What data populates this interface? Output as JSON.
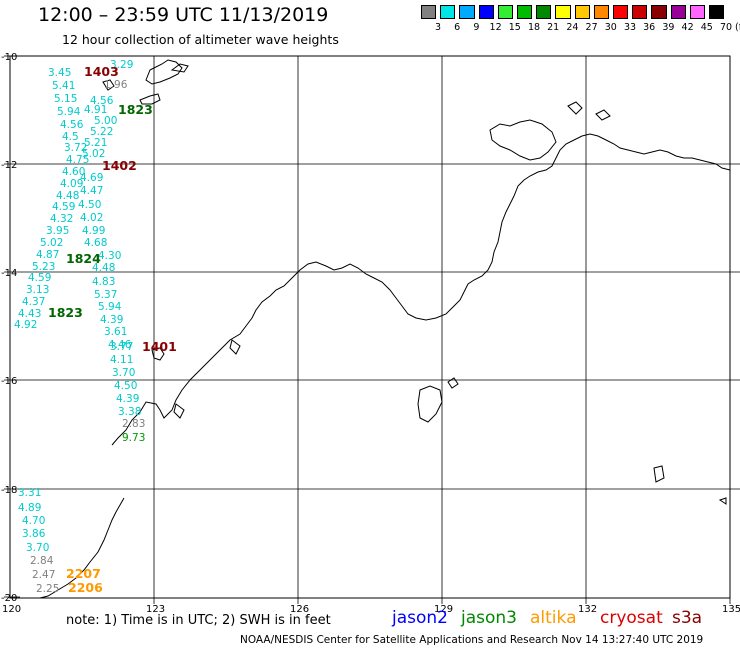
{
  "header": {
    "title": "12:00 – 23:59 UTC 11/13/2019",
    "subtitle": "12 hour collection of altimeter wave heights"
  },
  "legend": {
    "unit": "(ft)",
    "bins": [
      {
        "label": "3",
        "color": "#808080"
      },
      {
        "label": "6",
        "color": "#00e5e5"
      },
      {
        "label": "9",
        "color": "#00aaff"
      },
      {
        "label": "12",
        "color": "#0000ff"
      },
      {
        "label": "15",
        "color": "#33ee33"
      },
      {
        "label": "18",
        "color": "#00bb00"
      },
      {
        "label": "21",
        "color": "#008800"
      },
      {
        "label": "24",
        "color": "#ffff00"
      },
      {
        "label": "27",
        "color": "#ffc800"
      },
      {
        "label": "30",
        "color": "#ff8800"
      },
      {
        "label": "33",
        "color": "#ff0000"
      },
      {
        "label": "36",
        "color": "#cc0000"
      },
      {
        "label": "39",
        "color": "#880000"
      },
      {
        "label": "42",
        "color": "#990099"
      },
      {
        "label": "45",
        "color": "#ff66ff"
      },
      {
        "label": "70",
        "color": "#000000"
      }
    ]
  },
  "axes": {
    "lat_labels": [
      "-10",
      "-12",
      "-14",
      "-16",
      "-18",
      "-20"
    ],
    "lon_labels": [
      "120",
      "123",
      "126",
      "129",
      "132",
      "135"
    ]
  },
  "observations": [
    {
      "text": "3.45",
      "color": "#00cccc"
    },
    {
      "text": "5.41",
      "color": "#00cccc"
    },
    {
      "text": "5.15",
      "color": "#00cccc"
    },
    {
      "text": "5.94",
      "color": "#00cccc"
    },
    {
      "text": "4.56",
      "color": "#00cccc"
    },
    {
      "text": "4.5",
      "color": "#00cccc"
    },
    {
      "text": "3.72",
      "color": "#00cccc"
    },
    {
      "text": "4.75",
      "color": "#00cccc"
    },
    {
      "text": "4.60",
      "color": "#00cccc"
    },
    {
      "text": "4.09",
      "color": "#00cccc"
    },
    {
      "text": "4.48",
      "color": "#00cccc"
    },
    {
      "text": "4.59",
      "color": "#00cccc"
    },
    {
      "text": "4.32",
      "color": "#00cccc"
    },
    {
      "text": "3.95",
      "color": "#00cccc"
    },
    {
      "text": "5.02",
      "color": "#00cccc"
    },
    {
      "text": "4.87",
      "color": "#00cccc"
    },
    {
      "text": "5.23",
      "color": "#00cccc"
    },
    {
      "text": "4.59",
      "color": "#00cccc"
    },
    {
      "text": "3.13",
      "color": "#00cccc"
    },
    {
      "text": "4.37",
      "color": "#00cccc"
    },
    {
      "text": "4.43",
      "color": "#00cccc"
    },
    {
      "text": "4.92",
      "color": "#00cccc"
    },
    {
      "text": "3.29",
      "color": "#00cccc"
    },
    {
      "text": "1.96",
      "color": "#808080"
    },
    {
      "text": "4.56",
      "color": "#00cccc"
    },
    {
      "text": "4.91",
      "color": "#00cccc"
    },
    {
      "text": "5.00",
      "color": "#00cccc"
    },
    {
      "text": "5.22",
      "color": "#00cccc"
    },
    {
      "text": "5.21",
      "color": "#00cccc"
    },
    {
      "text": "5.02",
      "color": "#00cccc"
    },
    {
      "text": "4.69",
      "color": "#00cccc"
    },
    {
      "text": "4.47",
      "color": "#00cccc"
    },
    {
      "text": "4.50",
      "color": "#00cccc"
    },
    {
      "text": "4.02",
      "color": "#00cccc"
    },
    {
      "text": "4.99",
      "color": "#00cccc"
    },
    {
      "text": "4.68",
      "color": "#00cccc"
    },
    {
      "text": "4.30",
      "color": "#00cccc"
    },
    {
      "text": "4.48",
      "color": "#00cccc"
    },
    {
      "text": "4.83",
      "color": "#00cccc"
    },
    {
      "text": "5.37",
      "color": "#00cccc"
    },
    {
      "text": "5.94",
      "color": "#00cccc"
    },
    {
      "text": "4.39",
      "color": "#00cccc"
    },
    {
      "text": "3.61",
      "color": "#00cccc"
    },
    {
      "text": "4.46",
      "color": "#00cccc"
    },
    {
      "text": "3.77",
      "color": "#00cccc"
    },
    {
      "text": "4.11",
      "color": "#00cccc"
    },
    {
      "text": "3.70",
      "color": "#00cccc"
    },
    {
      "text": "4.50",
      "color": "#00cccc"
    },
    {
      "text": "4.39",
      "color": "#00cccc"
    },
    {
      "text": "3.38",
      "color": "#00cccc"
    },
    {
      "text": "2.83",
      "color": "#808080"
    },
    {
      "text": "9.73",
      "color": "#009900"
    },
    {
      "text": "3.31",
      "color": "#00cccc"
    },
    {
      "text": "4.89",
      "color": "#00cccc"
    },
    {
      "text": "4.70",
      "color": "#00cccc"
    },
    {
      "text": "3.86",
      "color": "#00cccc"
    },
    {
      "text": "3.70",
      "color": "#00cccc"
    },
    {
      "text": "2.84",
      "color": "#808080"
    },
    {
      "text": "2.47",
      "color": "#808080"
    },
    {
      "text": "2.25",
      "color": "#808080"
    }
  ],
  "pass_labels": [
    {
      "text": "1403",
      "color": "#880000"
    },
    {
      "text": "1823",
      "color": "#006600"
    },
    {
      "text": "1402",
      "color": "#880000"
    },
    {
      "text": "1824",
      "color": "#006600"
    },
    {
      "text": "1823",
      "color": "#006600"
    },
    {
      "text": "1401",
      "color": "#880000"
    },
    {
      "text": "2207",
      "color": "#ff9900"
    },
    {
      "text": "2206",
      "color": "#ff9900"
    }
  ],
  "footer": {
    "note": "note:  1) Time is in UTC;  2) SWH is in feet",
    "satellites": [
      {
        "name": "jason2",
        "color": "#0000ff"
      },
      {
        "name": "jason3",
        "color": "#008800"
      },
      {
        "name": "altika",
        "color": "#ff9900"
      },
      {
        "name": "cryosat",
        "color": "#dd0000"
      },
      {
        "name": "s3a",
        "color": "#880000"
      }
    ],
    "credit": "NOAA/NESDIS Center for Satellite Applications and Research    Nov 14 13:27:40 UTC 2019"
  }
}
